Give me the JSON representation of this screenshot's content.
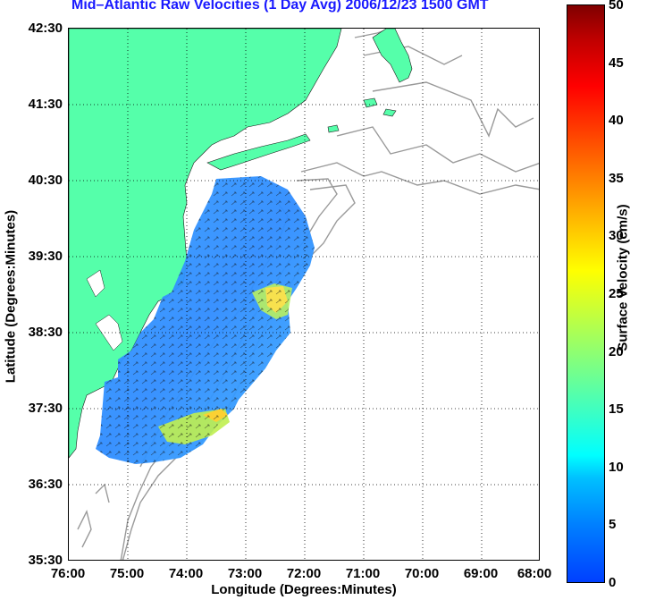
{
  "title": "Mid–Atlantic Raw Velocities (1 Day Avg) 2006/12/23 1500 GMT",
  "map": {
    "xlabel": "Longitude (Degrees:Minutes)",
    "ylabel": "Latitude (Degrees:Minutes)",
    "x_ticks": [
      "76:00",
      "75:00",
      "74:00",
      "73:00",
      "72:00",
      "71:00",
      "70:00",
      "69:00",
      "68:00"
    ],
    "y_ticks": [
      "42:30",
      "41:30",
      "40:30",
      "39:30",
      "38:30",
      "37:30",
      "36:30",
      "35:30"
    ],
    "lon_range_deg": [
      -76,
      -68
    ],
    "lat_range_deg": [
      35.5,
      42.5
    ],
    "colors": {
      "land": "#55ffaa",
      "ocean": "#ffffff",
      "bathymetry": "#a0a0a0",
      "grid": "#000000"
    }
  },
  "colorbar": {
    "label": "Surface Velocity (cm/s)",
    "ticks": [
      "50",
      "45",
      "40",
      "35",
      "30",
      "25",
      "20",
      "15",
      "10",
      "5",
      "0"
    ],
    "range": [
      0,
      50
    ],
    "colormap": "jet"
  }
}
